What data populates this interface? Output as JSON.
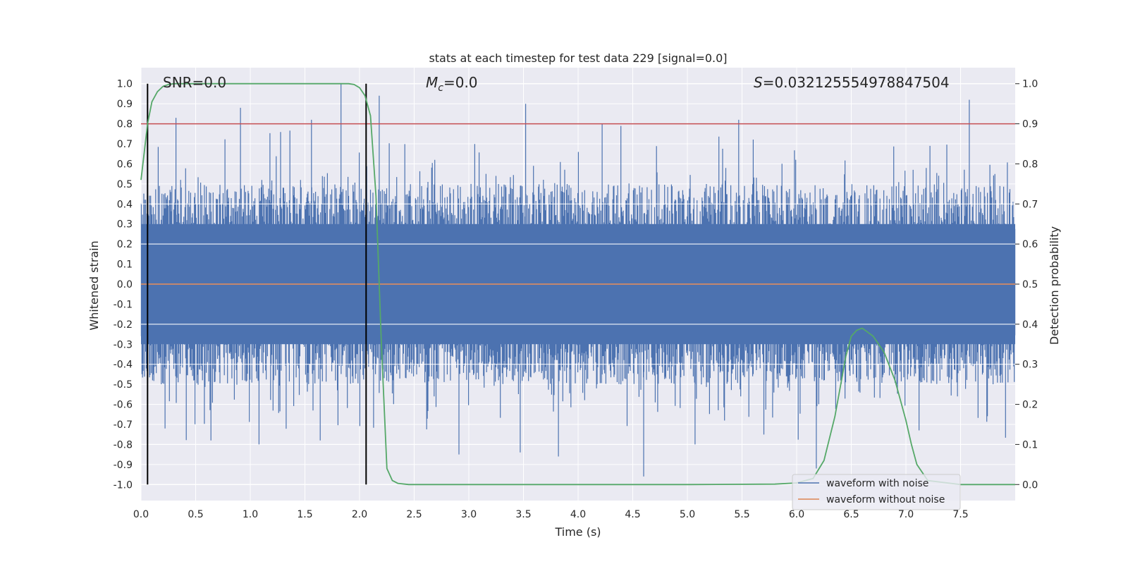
{
  "chart_data": {
    "type": "line",
    "title": "stats at each timestep for test data 229 [signal=0.0]",
    "xlabel": "Time (s)",
    "ylabel": "Whitened strain",
    "y2label": "Detection probability",
    "xlim": [
      0.0,
      8.0
    ],
    "ylim": [
      -1.08,
      1.08
    ],
    "y2lim": [
      -0.04,
      1.04
    ],
    "x_ticks": [
      "0.0",
      "0.5",
      "1.0",
      "1.5",
      "2.0",
      "2.5",
      "3.0",
      "3.5",
      "4.0",
      "4.5",
      "5.0",
      "5.5",
      "6.0",
      "6.5",
      "7.0",
      "7.5"
    ],
    "y_ticks": [
      "1.0",
      "0.9",
      "0.8",
      "0.7",
      "0.6",
      "0.5",
      "0.4",
      "0.3",
      "0.2",
      "0.1",
      "0.0",
      "-0.1",
      "-0.2",
      "-0.3",
      "-0.4",
      "-0.5",
      "-0.6",
      "-0.7",
      "-0.8",
      "-0.9",
      "-1.0"
    ],
    "y2_ticks": [
      "1.0",
      "0.9",
      "0.8",
      "0.7",
      "0.6",
      "0.5",
      "0.4",
      "0.3",
      "0.2",
      "0.1",
      "0.0"
    ],
    "grid": true,
    "legend_position": "bottom-right",
    "annotations": {
      "snr": "SNR=0.0",
      "mc_symbol": "M",
      "mc_subscript": "c",
      "mc_value": "=0.0",
      "s_symbol": "S",
      "s_value": "=0.032125554978847504"
    },
    "threshold": {
      "value": 0.9,
      "axis": "right",
      "color": "#c44e52"
    },
    "vertical_markers": [
      0.06,
      2.06
    ],
    "series": [
      {
        "name": "waveform with noise",
        "axis": "left",
        "color": "#4c72b0",
        "render": "noise-band",
        "typical_envelope": [
          -0.45,
          0.45
        ],
        "peaks": [
          {
            "x": 0.32,
            "y": 0.83
          },
          {
            "x": 0.91,
            "y": 0.88
          },
          {
            "x": 1.56,
            "y": 0.82
          },
          {
            "x": 1.83,
            "y": 1.0
          },
          {
            "x": 2.18,
            "y": 0.94
          },
          {
            "x": 3.52,
            "y": 0.9
          },
          {
            "x": 4.22,
            "y": 0.8
          },
          {
            "x": 5.47,
            "y": 0.82
          },
          {
            "x": 7.58,
            "y": 0.92
          }
        ],
        "troughs": [
          {
            "x": 0.22,
            "y": -0.72
          },
          {
            "x": 0.64,
            "y": -0.78
          },
          {
            "x": 1.08,
            "y": -0.8
          },
          {
            "x": 1.64,
            "y": -0.78
          },
          {
            "x": 2.91,
            "y": -0.85
          },
          {
            "x": 3.47,
            "y": -0.84
          },
          {
            "x": 3.82,
            "y": -0.86
          },
          {
            "x": 4.6,
            "y": -0.96
          },
          {
            "x": 5.07,
            "y": -0.8
          },
          {
            "x": 6.18,
            "y": -0.92
          },
          {
            "x": 7.12,
            "y": -0.73
          }
        ]
      },
      {
        "name": "waveform without noise",
        "axis": "left",
        "color": "#dd8452",
        "x": [
          0.0,
          8.0
        ],
        "y": [
          0.0,
          0.0
        ]
      },
      {
        "name": "",
        "axis": "right",
        "color": "#55a868",
        "x": [
          0.0,
          0.03,
          0.06,
          0.1,
          0.15,
          0.2,
          0.25,
          0.3,
          0.4,
          0.6,
          1.0,
          1.5,
          1.8,
          1.9,
          1.95,
          2.0,
          2.05,
          2.1,
          2.15,
          2.2,
          2.25,
          2.3,
          2.35,
          2.45,
          2.6,
          3.0,
          4.0,
          5.0,
          5.8,
          6.0,
          6.15,
          6.25,
          6.35,
          6.45,
          6.5,
          6.55,
          6.6,
          6.65,
          6.7,
          6.8,
          6.9,
          7.0,
          7.05,
          7.1,
          7.2,
          7.5,
          8.0
        ],
        "y": [
          0.76,
          0.83,
          0.9,
          0.955,
          0.98,
          0.993,
          0.998,
          1.0,
          1.0,
          1.0,
          1.0,
          1.0,
          1.0,
          1.0,
          0.998,
          0.99,
          0.97,
          0.92,
          0.72,
          0.35,
          0.04,
          0.01,
          0.003,
          0.0,
          0.0,
          0.0,
          0.0,
          0.0,
          0.001,
          0.004,
          0.015,
          0.06,
          0.17,
          0.32,
          0.37,
          0.385,
          0.39,
          0.38,
          0.37,
          0.33,
          0.26,
          0.16,
          0.1,
          0.05,
          0.01,
          0.0,
          0.0
        ]
      }
    ]
  }
}
